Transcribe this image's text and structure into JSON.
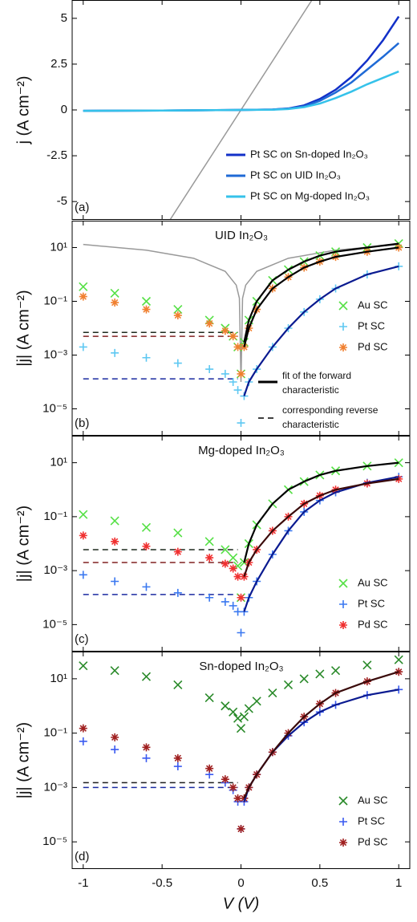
{
  "chart_data": [
    {
      "type": "line",
      "panel_label": "(a)",
      "ylabel": "j (A cm⁻²)",
      "xlim": [
        -1.07,
        1.07
      ],
      "ylim": [
        -6,
        6
      ],
      "yticks": [
        5,
        2.5,
        0,
        -2.5,
        -5
      ],
      "legend": "lower right",
      "x": [
        -1,
        -0.5,
        0,
        0.2,
        0.3,
        0.4,
        0.5,
        0.6,
        0.7,
        0.8,
        0.9,
        1
      ],
      "series": [
        {
          "name": "Pt SC on Sn-doped In₂O₃",
          "color": "#1230c8",
          "values": [
            -0.05,
            -0.03,
            0,
            0.02,
            0.08,
            0.25,
            0.6,
            1.1,
            1.8,
            2.7,
            3.8,
            5.1
          ]
        },
        {
          "name": "Pt SC on UID In₂O₃",
          "color": "#1f6ad6",
          "values": [
            -0.05,
            -0.03,
            0,
            0.02,
            0.07,
            0.2,
            0.5,
            0.95,
            1.5,
            2.2,
            2.9,
            3.65
          ]
        },
        {
          "name": "Pt SC on Mg-doped In₂O₃",
          "color": "#35c2ea",
          "values": [
            -0.05,
            -0.03,
            0,
            0.01,
            0.05,
            0.15,
            0.35,
            0.65,
            1.0,
            1.4,
            1.75,
            2.1
          ]
        }
      ],
      "reference": {
        "color": "#999999",
        "x": [
          -0.45,
          0.45
        ],
        "values": [
          -6,
          6
        ]
      }
    },
    {
      "type": "scatter",
      "log_y": true,
      "title": "UID In₂O₃",
      "panel_label": "(b)",
      "ylabel": "|j| (A cm⁻²)",
      "xlim": [
        -1.07,
        1.07
      ],
      "ylim": [
        1e-06,
        100
      ],
      "legend": "center right",
      "yticks": [
        {
          "value": 10,
          "label": "10¹"
        },
        {
          "value": 0.1,
          "label": "10⁻¹"
        },
        {
          "value": 0.001,
          "label": "10⁻³"
        },
        {
          "value": 1e-05,
          "label": "10⁻⁵"
        }
      ],
      "x": [
        -1,
        -0.8,
        -0.6,
        -0.4,
        -0.2,
        -0.1,
        -0.05,
        -0.02,
        0,
        0.02,
        0.05,
        0.1,
        0.2,
        0.3,
        0.4,
        0.5,
        0.6,
        0.8,
        1
      ],
      "series": [
        {
          "name": "Au SC",
          "marker": "x",
          "color": "#55e045",
          "values": [
            0.35,
            0.2,
            0.1,
            0.05,
            0.02,
            0.01,
            0.005,
            0.002,
            0.0002,
            0.003,
            0.02,
            0.1,
            0.6,
            1.5,
            3,
            5,
            7,
            10,
            14
          ]
        },
        {
          "name": "Pt SC",
          "marker": "+",
          "color": "#5ec8f2",
          "values": [
            0.002,
            0.0012,
            0.0008,
            0.0005,
            0.0003,
            0.0002,
            0.0001,
            5e-05,
            3e-06,
            3e-05,
            0.0001,
            0.0003,
            0.002,
            0.01,
            0.04,
            0.12,
            0.3,
            1,
            2
          ]
        },
        {
          "name": "Pd SC",
          "marker": "*",
          "color": "#f08030",
          "values": [
            0.15,
            0.09,
            0.05,
            0.03,
            0.015,
            0.008,
            0.005,
            0.002,
            0.0002,
            0.002,
            0.01,
            0.05,
            0.3,
            0.8,
            1.8,
            3,
            4.5,
            7,
            10
          ]
        }
      ],
      "fits": [
        {
          "color": "#000000",
          "x": [
            0.02,
            0.05,
            0.1,
            0.2,
            0.3,
            0.4,
            0.5,
            0.6,
            0.8,
            1
          ],
          "values": [
            0.003,
            0.02,
            0.1,
            0.6,
            1.5,
            3,
            5,
            7,
            10,
            14
          ]
        },
        {
          "color": "#0a1a90",
          "x": [
            0.02,
            0.05,
            0.1,
            0.2,
            0.3,
            0.4,
            0.5,
            0.6,
            0.8,
            1
          ],
          "values": [
            3e-05,
            0.0001,
            0.0003,
            0.002,
            0.01,
            0.04,
            0.12,
            0.3,
            1,
            2
          ]
        },
        {
          "color": "#000000",
          "x": [
            0.02,
            0.05,
            0.1,
            0.2,
            0.3,
            0.4,
            0.5,
            0.6,
            0.8,
            1
          ],
          "values": [
            0.002,
            0.01,
            0.05,
            0.3,
            0.8,
            1.8,
            3,
            4.5,
            7,
            10
          ]
        }
      ],
      "reverse": [
        {
          "color": "#1e2a1e",
          "x": [
            -1,
            -0.02
          ],
          "values": [
            0.007,
            0.007
          ]
        },
        {
          "color": "#1a2aa0",
          "x": [
            -1,
            -0.02
          ],
          "values": [
            0.00013,
            0.00013
          ]
        },
        {
          "color": "#802020",
          "x": [
            -1,
            -0.02
          ],
          "values": [
            0.005,
            0.005
          ]
        }
      ],
      "reference": {
        "color": "#999999",
        "x": [
          -1,
          -0.6,
          -0.3,
          -0.1,
          -0.03,
          -0.01,
          0,
          0.01,
          0.03,
          0.1,
          0.3,
          0.6,
          1
        ],
        "values": [
          13,
          8,
          4,
          1.3,
          0.4,
          0.13,
          0.0001,
          0.13,
          0.4,
          1.3,
          4,
          8,
          13
        ]
      },
      "fit_legend": [
        "fit of the forward",
        "characteristic"
      ],
      "reverse_legend": [
        "corresponding reverse",
        "characteristic"
      ]
    },
    {
      "type": "scatter",
      "log_y": true,
      "title": "Mg-doped In₂O₃",
      "panel_label": "(c)",
      "ylabel": "|j| (A cm⁻²)",
      "xlim": [
        -1.07,
        1.07
      ],
      "ylim": [
        1e-06,
        100
      ],
      "legend": "lower right",
      "yticks": [
        {
          "value": 10,
          "label": "10¹"
        },
        {
          "value": 0.1,
          "label": "10⁻¹"
        },
        {
          "value": 0.001,
          "label": "10⁻³"
        },
        {
          "value": 1e-05,
          "label": "10⁻⁵"
        }
      ],
      "x": [
        -1,
        -0.8,
        -0.6,
        -0.4,
        -0.2,
        -0.1,
        -0.05,
        -0.02,
        0,
        0.02,
        0.05,
        0.1,
        0.2,
        0.3,
        0.4,
        0.5,
        0.6,
        0.8,
        1
      ],
      "series": [
        {
          "name": "Au SC",
          "marker": "x",
          "color": "#55e045",
          "values": [
            0.12,
            0.07,
            0.04,
            0.025,
            0.012,
            0.006,
            0.003,
            0.0015,
            0.0001,
            0.002,
            0.01,
            0.05,
            0.3,
            1,
            2,
            3.5,
            5,
            7.5,
            10
          ]
        },
        {
          "name": "Pt SC",
          "marker": "+",
          "color": "#3a78f0",
          "values": [
            0.0007,
            0.0004,
            0.00025,
            0.00015,
            0.0001,
            7e-05,
            5e-05,
            3e-05,
            5e-06,
            3e-05,
            0.0001,
            0.0004,
            0.004,
            0.03,
            0.15,
            0.4,
            0.8,
            1.8,
            3
          ]
        },
        {
          "name": "Pd SC",
          "marker": "*",
          "color": "#f03030",
          "values": [
            0.02,
            0.012,
            0.008,
            0.005,
            0.003,
            0.0018,
            0.0012,
            0.0006,
            0.0001,
            0.0006,
            0.002,
            0.006,
            0.03,
            0.1,
            0.3,
            0.6,
            1,
            1.7,
            2.5
          ]
        }
      ],
      "fits": [
        {
          "color": "#000000",
          "x": [
            0.02,
            0.05,
            0.1,
            0.2,
            0.3,
            0.4,
            0.5,
            0.6,
            0.8,
            1
          ],
          "values": [
            0.002,
            0.01,
            0.05,
            0.3,
            1,
            2,
            3.5,
            5,
            7.5,
            10
          ]
        },
        {
          "color": "#0a1a90",
          "x": [
            0.02,
            0.05,
            0.1,
            0.2,
            0.3,
            0.4,
            0.5,
            0.6,
            0.8,
            1
          ],
          "values": [
            3e-05,
            0.0001,
            0.0004,
            0.004,
            0.03,
            0.15,
            0.4,
            0.8,
            1.8,
            3
          ]
        },
        {
          "color": "#3a0a0a",
          "x": [
            0.02,
            0.05,
            0.1,
            0.2,
            0.3,
            0.4,
            0.5,
            0.6,
            0.8,
            1
          ],
          "values": [
            0.0006,
            0.002,
            0.006,
            0.03,
            0.1,
            0.3,
            0.6,
            1,
            1.7,
            2.5
          ]
        }
      ],
      "reverse": [
        {
          "color": "#1e2a1e",
          "x": [
            -1,
            -0.02
          ],
          "values": [
            0.006,
            0.006
          ]
        },
        {
          "color": "#1a2aa0",
          "x": [
            -1,
            -0.02
          ],
          "values": [
            0.00013,
            0.00013
          ]
        },
        {
          "color": "#802020",
          "x": [
            -1,
            -0.02
          ],
          "values": [
            0.002,
            0.002
          ]
        }
      ]
    },
    {
      "type": "scatter",
      "log_y": true,
      "title": "Sn-doped In₂O₃",
      "panel_label": "(d)",
      "ylabel": "|j| (A cm⁻²)",
      "xlabel": "V (V)",
      "xlim": [
        -1.07,
        1.07
      ],
      "ylim": [
        1e-06,
        100
      ],
      "xticks": [
        -1,
        -0.5,
        0,
        0.5,
        1
      ],
      "legend": "lower right",
      "yticks": [
        {
          "value": 10,
          "label": "10¹"
        },
        {
          "value": 0.1,
          "label": "10⁻¹"
        },
        {
          "value": 0.001,
          "label": "10⁻³"
        },
        {
          "value": 1e-05,
          "label": "10⁻⁵"
        }
      ],
      "x": [
        -1,
        -0.8,
        -0.6,
        -0.4,
        -0.2,
        -0.1,
        -0.05,
        -0.02,
        0,
        0.02,
        0.05,
        0.1,
        0.2,
        0.3,
        0.4,
        0.5,
        0.6,
        0.8,
        1
      ],
      "series": [
        {
          "name": "Au SC",
          "marker": "x",
          "color": "#2a8a2a",
          "values": [
            30,
            20,
            12,
            6,
            2,
            1,
            0.6,
            0.35,
            0.15,
            0.4,
            0.8,
            1.5,
            3,
            6,
            10,
            15,
            20,
            32,
            50
          ]
        },
        {
          "name": "Pt SC",
          "marker": "+",
          "color": "#3a5af0",
          "values": [
            0.05,
            0.025,
            0.012,
            0.006,
            0.003,
            0.0015,
            0.0008,
            0.0003,
            3e-05,
            0.0003,
            0.001,
            0.003,
            0.02,
            0.08,
            0.25,
            0.6,
            1.1,
            2.5,
            4
          ]
        },
        {
          "name": "Pd SC",
          "marker": "*",
          "color": "#a02020",
          "values": [
            0.15,
            0.07,
            0.03,
            0.012,
            0.005,
            0.002,
            0.001,
            0.0004,
            3e-05,
            0.0004,
            0.001,
            0.003,
            0.02,
            0.1,
            0.4,
            1.2,
            3,
            8,
            18
          ]
        }
      ],
      "fits": [
        {
          "color": "#0a1a90",
          "x": [
            0.02,
            0.05,
            0.1,
            0.2,
            0.3,
            0.4,
            0.5,
            0.6,
            0.8,
            1
          ],
          "values": [
            0.0003,
            0.001,
            0.003,
            0.02,
            0.08,
            0.25,
            0.6,
            1.1,
            2.5,
            4
          ]
        },
        {
          "color": "#3a0a0a",
          "x": [
            0.02,
            0.05,
            0.1,
            0.2,
            0.3,
            0.4,
            0.5,
            0.6,
            0.8,
            1
          ],
          "values": [
            0.0004,
            0.001,
            0.003,
            0.02,
            0.1,
            0.4,
            1.2,
            3,
            8,
            18
          ]
        }
      ],
      "reverse": [
        {
          "color": "#1e1e1e",
          "x": [
            -1,
            -0.02
          ],
          "values": [
            0.0015,
            0.0015
          ]
        },
        {
          "color": "#1a2aa0",
          "x": [
            -1,
            -0.02
          ],
          "values": [
            0.001,
            0.001
          ]
        }
      ]
    }
  ]
}
